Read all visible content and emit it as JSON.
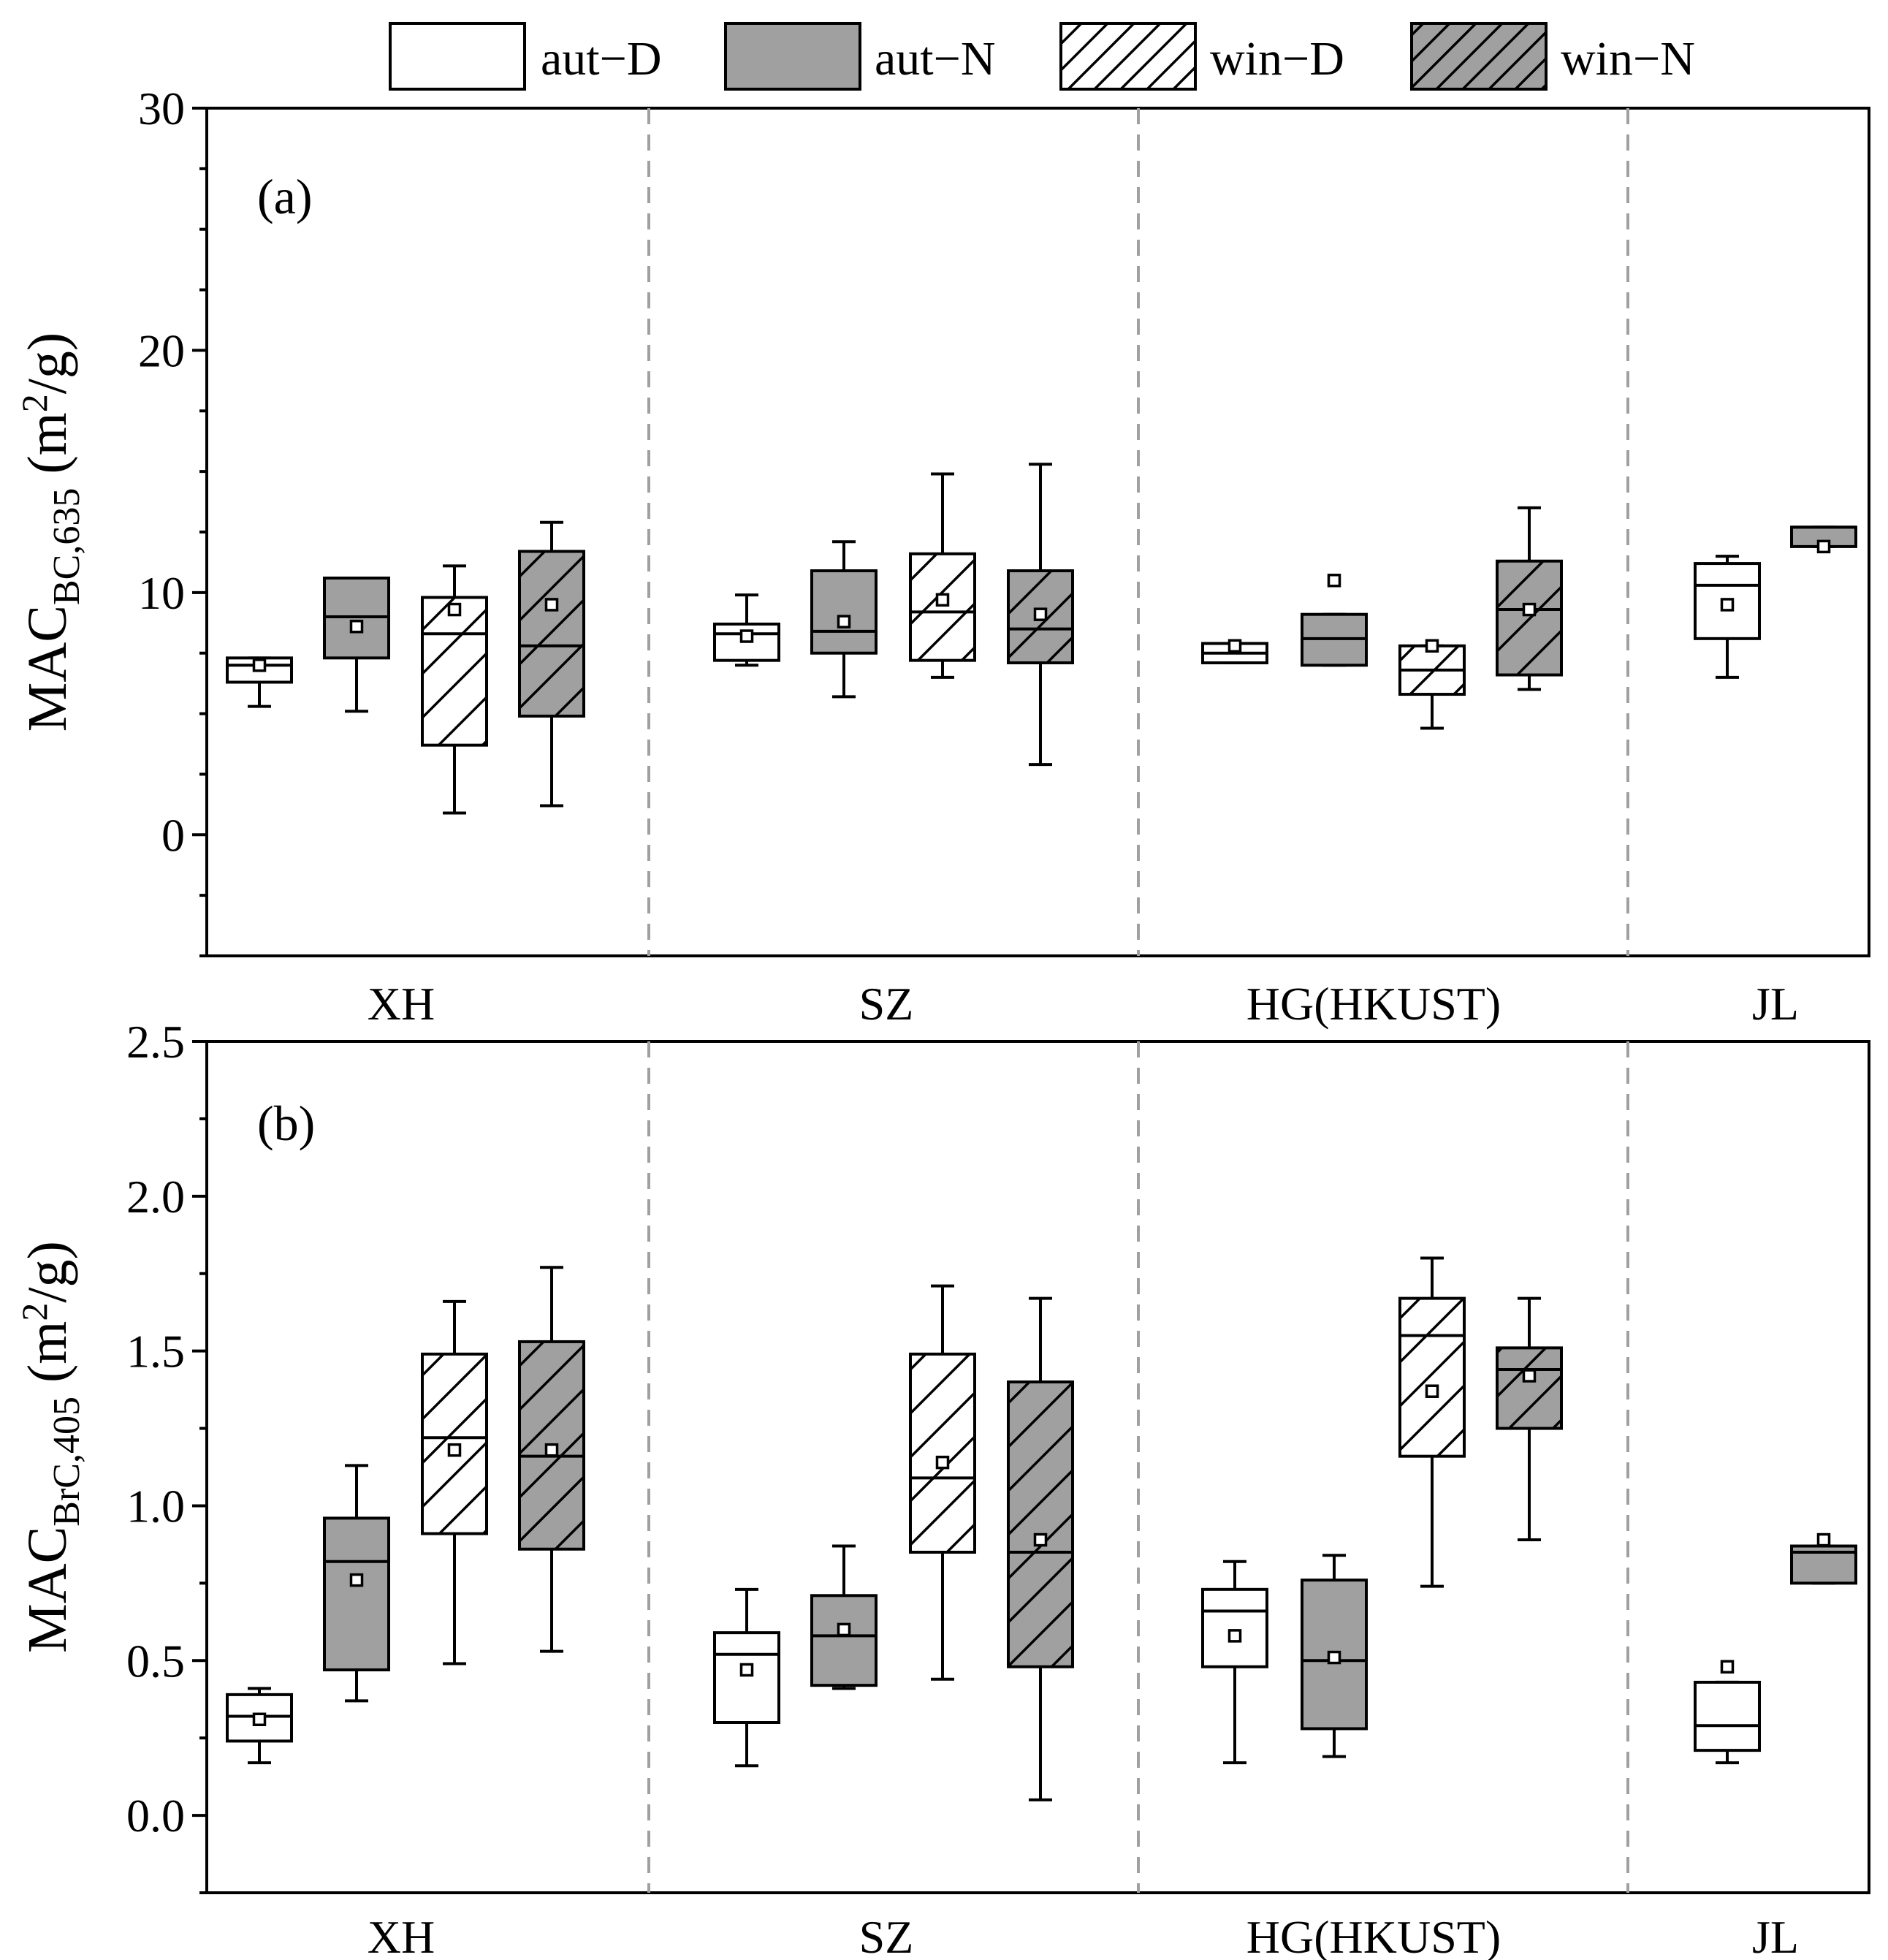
{
  "legend": {
    "items": [
      {
        "key": "aut-D",
        "label": "aut−D"
      },
      {
        "key": "aut-N",
        "label": "aut−N"
      },
      {
        "key": "win-D",
        "label": "win−D"
      },
      {
        "key": "win-N",
        "label": "win−N"
      }
    ]
  },
  "colors": {
    "axis": "#000000",
    "box_fill_aut_D": "#ffffff",
    "box_fill_aut_N": "#a0a0a0",
    "box_fill_win_D": "#ffffff",
    "box_fill_win_N": "#a0a0a0",
    "hatch": "#000000",
    "separator": "#a0a0a0"
  },
  "chart_data": [
    {
      "type": "box",
      "panel_label": "(a)",
      "ylabel": {
        "main": "MAC",
        "sub": "BC,635",
        "unit_pre": " (m",
        "unit_sup": "2",
        "unit_post": "/g)"
      },
      "ylim": [
        -5,
        30
      ],
      "yticks": [
        0,
        10,
        20,
        30
      ],
      "ytick_labels": [
        "0",
        "10",
        "20",
        "30"
      ],
      "minor_step": 2.5,
      "categories": [
        "XH",
        "SZ",
        "HG(HKUST)",
        "JL"
      ],
      "series_order": [
        "aut-D",
        "aut-N",
        "win-D",
        "win-N"
      ],
      "groups": [
        {
          "site": "XH",
          "boxes": [
            {
              "series": "aut-D",
              "whislo": 5.3,
              "q1": 6.3,
              "med": 7.0,
              "q3": 7.3,
              "whishi": 7.3,
              "mean": 7.0
            },
            {
              "series": "aut-N",
              "whislo": 5.1,
              "q1": 7.3,
              "med": 9.0,
              "q3": 10.6,
              "whishi": 10.6,
              "mean": 8.6
            },
            {
              "series": "win-D",
              "whislo": 0.9,
              "q1": 3.7,
              "med": 8.3,
              "q3": 9.8,
              "whishi": 11.1,
              "mean": 9.3
            },
            {
              "series": "win-N",
              "whislo": 1.2,
              "q1": 4.9,
              "med": 7.8,
              "q3": 11.7,
              "whishi": 12.9,
              "mean": 9.5
            }
          ]
        },
        {
          "site": "SZ",
          "boxes": [
            {
              "series": "aut-D",
              "whislo": 7.0,
              "q1": 7.2,
              "med": 8.3,
              "q3": 8.7,
              "whishi": 9.9,
              "mean": 8.2
            },
            {
              "series": "aut-N",
              "whislo": 5.7,
              "q1": 7.5,
              "med": 8.4,
              "q3": 10.9,
              "whishi": 12.1,
              "mean": 8.8
            },
            {
              "series": "win-D",
              "whislo": 6.5,
              "q1": 7.2,
              "med": 9.2,
              "q3": 11.6,
              "whishi": 14.9,
              "mean": 9.7
            },
            {
              "series": "win-N",
              "whislo": 2.9,
              "q1": 7.1,
              "med": 8.5,
              "q3": 10.9,
              "whishi": 15.3,
              "mean": 9.1
            }
          ]
        },
        {
          "site": "HG(HKUST)",
          "boxes": [
            {
              "series": "aut-D",
              "whislo": 7.1,
              "q1": 7.1,
              "med": 7.5,
              "q3": 7.9,
              "whishi": 7.9,
              "mean": 7.8
            },
            {
              "series": "aut-N",
              "whislo": 7.0,
              "q1": 7.0,
              "med": 8.1,
              "q3": 9.1,
              "whishi": 9.1,
              "mean": 10.5
            },
            {
              "series": "win-D",
              "whislo": 4.4,
              "q1": 5.8,
              "med": 6.8,
              "q3": 7.8,
              "whishi": 7.8,
              "mean": 7.8
            },
            {
              "series": "win-N",
              "whislo": 6.0,
              "q1": 6.6,
              "med": 9.3,
              "q3": 11.3,
              "whishi": 13.5,
              "mean": 9.3
            }
          ]
        },
        {
          "site": "JL",
          "boxes": [
            {
              "series": "aut-D",
              "whislo": 6.5,
              "q1": 8.1,
              "med": 10.3,
              "q3": 11.2,
              "whishi": 11.5,
              "mean": 9.5
            },
            {
              "series": "aut-N",
              "whislo": 11.9,
              "q1": 11.9,
              "med": 12.7,
              "q3": 12.7,
              "whishi": 12.7,
              "mean": 11.9
            }
          ]
        }
      ]
    },
    {
      "type": "box",
      "panel_label": "(b)",
      "ylabel": {
        "main": "MAC",
        "sub": "BrC,405",
        "unit_pre": " (m",
        "unit_sup": "2",
        "unit_post": "/g)"
      },
      "ylim": [
        -0.25,
        2.5
      ],
      "yticks": [
        0,
        0.5,
        1.0,
        1.5,
        2.0,
        2.5
      ],
      "ytick_labels": [
        "0.0",
        "0.5",
        "1.0",
        "1.5",
        "2.0",
        "2.5"
      ],
      "minor_step": 0.25,
      "categories": [
        "XH",
        "SZ",
        "HG(HKUST)",
        "JL"
      ],
      "series_order": [
        "aut-D",
        "aut-N",
        "win-D",
        "win-N"
      ],
      "groups": [
        {
          "site": "XH",
          "boxes": [
            {
              "series": "aut-D",
              "whislo": 0.17,
              "q1": 0.24,
              "med": 0.32,
              "q3": 0.39,
              "whishi": 0.41,
              "mean": 0.31
            },
            {
              "series": "aut-N",
              "whislo": 0.37,
              "q1": 0.47,
              "med": 0.82,
              "q3": 0.96,
              "whishi": 1.13,
              "mean": 0.76
            },
            {
              "series": "win-D",
              "whislo": 0.49,
              "q1": 0.91,
              "med": 1.22,
              "q3": 1.49,
              "whishi": 1.66,
              "mean": 1.18
            },
            {
              "series": "win-N",
              "whislo": 0.53,
              "q1": 0.86,
              "med": 1.16,
              "q3": 1.53,
              "whishi": 1.77,
              "mean": 1.18
            }
          ]
        },
        {
          "site": "SZ",
          "boxes": [
            {
              "series": "aut-D",
              "whislo": 0.16,
              "q1": 0.3,
              "med": 0.52,
              "q3": 0.59,
              "whishi": 0.73,
              "mean": 0.47
            },
            {
              "series": "aut-N",
              "whislo": 0.41,
              "q1": 0.42,
              "med": 0.58,
              "q3": 0.71,
              "whishi": 0.87,
              "mean": 0.6
            },
            {
              "series": "win-D",
              "whislo": 0.44,
              "q1": 0.85,
              "med": 1.09,
              "q3": 1.49,
              "whishi": 1.71,
              "mean": 1.14
            },
            {
              "series": "win-N",
              "whislo": 0.05,
              "q1": 0.48,
              "med": 0.85,
              "q3": 1.4,
              "whishi": 1.67,
              "mean": 0.89
            }
          ]
        },
        {
          "site": "HG(HKUST)",
          "boxes": [
            {
              "series": "aut-D",
              "whislo": 0.17,
              "q1": 0.48,
              "med": 0.66,
              "q3": 0.73,
              "whishi": 0.82,
              "mean": 0.58
            },
            {
              "series": "aut-N",
              "whislo": 0.19,
              "q1": 0.28,
              "med": 0.5,
              "q3": 0.76,
              "whishi": 0.84,
              "mean": 0.51
            },
            {
              "series": "win-D",
              "whislo": 0.74,
              "q1": 1.16,
              "med": 1.55,
              "q3": 1.67,
              "whishi": 1.8,
              "mean": 1.37
            },
            {
              "series": "win-N",
              "whislo": 0.89,
              "q1": 1.25,
              "med": 1.44,
              "q3": 1.51,
              "whishi": 1.67,
              "mean": 1.42
            }
          ]
        },
        {
          "site": "JL",
          "boxes": [
            {
              "series": "aut-D",
              "whislo": 0.17,
              "q1": 0.21,
              "med": 0.29,
              "q3": 0.43,
              "whishi": 0.43,
              "mean": 0.48
            },
            {
              "series": "aut-N",
              "whislo": 0.75,
              "q1": 0.75,
              "med": 0.85,
              "q3": 0.87,
              "whishi": 0.87,
              "mean": 0.89
            }
          ]
        }
      ]
    }
  ]
}
